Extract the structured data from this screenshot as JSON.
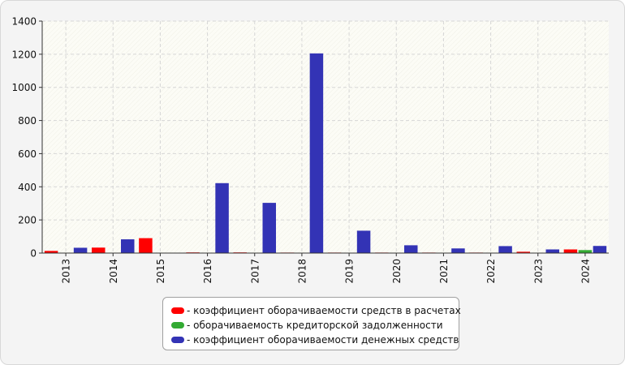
{
  "chart_data": {
    "type": "bar",
    "categories": [
      "2013",
      "2014",
      "2015",
      "2016",
      "2017",
      "2018",
      "2019",
      "2020",
      "2021",
      "2022",
      "2023",
      "2024"
    ],
    "series": [
      {
        "name": "- коэффициент оборачиваемости средств в расчетах",
        "color": "#ff0000",
        "values": [
          13,
          33,
          90,
          4,
          4,
          3,
          3,
          3,
          3,
          3,
          8,
          22
        ]
      },
      {
        "name": "- оборачиваемость кредиторской задолженности",
        "color": "#33aa33",
        "values": [
          2,
          2,
          2,
          2,
          2,
          2,
          2,
          2,
          2,
          2,
          2,
          18
        ]
      },
      {
        "name": "- коэффициент оборачиваемости денежных средств",
        "color": "#3333b5",
        "values": [
          32,
          83,
          2,
          422,
          303,
          1205,
          135,
          47,
          28,
          42,
          22,
          43
        ]
      }
    ],
    "yticks": [
      0,
      200,
      400,
      600,
      800,
      1000,
      1200,
      1400
    ],
    "ylim": [
      0,
      1400
    ],
    "grid": true,
    "legend_position": "bottom"
  }
}
